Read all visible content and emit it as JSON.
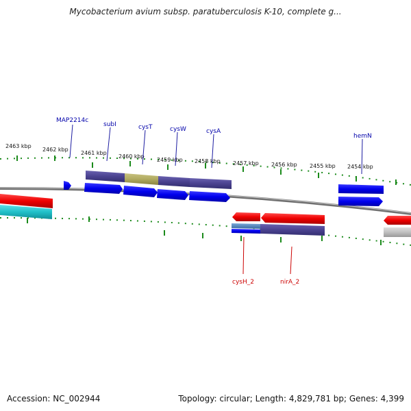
{
  "title": "Mycobacterium avium subsp. paratuberculosis K-10, complete g...",
  "accession": "Accession: NC_002944",
  "topology": "Topology: circular; Length: 4,829,781 bp; Genes: 4,399",
  "ticks": [
    "2463 kbp",
    "2462 kbp",
    "2461 kbp",
    "2460 kbp",
    "2459 kbp",
    "2458 kbp",
    "2457 kbp",
    "2456 kbp",
    "2455 kbp",
    "2454 kbp"
  ],
  "genes_top": [
    "MAP2214c",
    "subI",
    "cysT",
    "cysW",
    "cysA",
    "hemN"
  ],
  "genes_bottom": [
    "cysH_2",
    "nirA_2"
  ],
  "colors": {
    "forward_cds": "#0000ee",
    "reverse_cds": "#ee0000",
    "label_forward": "#0000aa",
    "label_reverse": "#cc0000",
    "cog_purple": "#4a4290",
    "cog_olive": "#b0aa60",
    "cog_cyan": "#20c0c8",
    "tick_green": "#1a8a1a",
    "backbone": "#888888"
  }
}
